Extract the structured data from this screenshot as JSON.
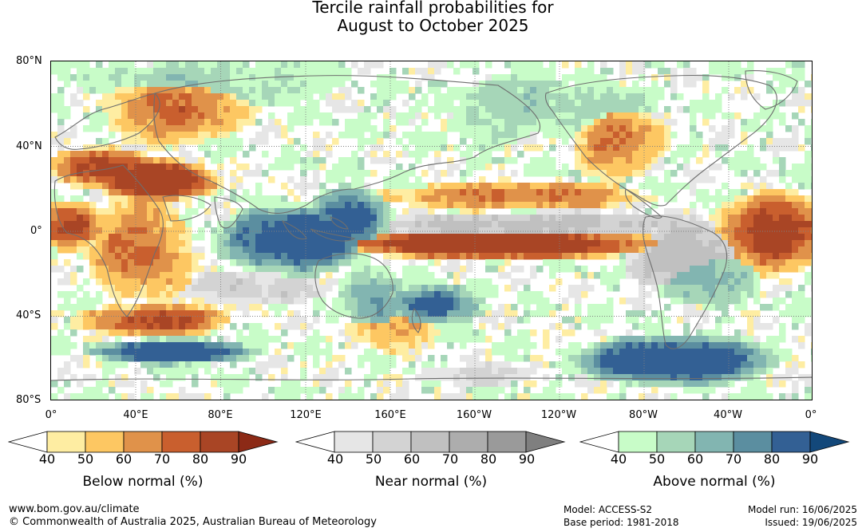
{
  "title": {
    "line1": "Tercile rainfall probabilities for",
    "line2": "August to October 2025"
  },
  "axes": {
    "lat_labels": [
      "80°N",
      "40°N",
      "0°",
      "40°S",
      "80°S"
    ],
    "lon_labels": [
      "0°",
      "40°E",
      "80°E",
      "120°E",
      "160°E",
      "160°W",
      "120°W",
      "80°W",
      "40°W",
      "0°"
    ]
  },
  "legends": [
    {
      "id": "below",
      "title": "Below normal (%)",
      "ticks": [
        "40",
        "50",
        "60",
        "70",
        "80",
        "90"
      ],
      "colors": [
        "#ffffff",
        "#feeda2",
        "#fdc762",
        "#e0924a",
        "#c95f2e",
        "#a94525",
        "#8c2a16"
      ]
    },
    {
      "id": "near",
      "title": "Near normal (%)",
      "ticks": [
        "40",
        "50",
        "60",
        "70",
        "80",
        "90"
      ],
      "colors": [
        "#ffffff",
        "#e6e6e6",
        "#d3d3d3",
        "#c0c0c0",
        "#adadad",
        "#9a9a9a",
        "#7f7f7f"
      ]
    },
    {
      "id": "above",
      "title": "Above normal (%)",
      "ticks": [
        "40",
        "50",
        "60",
        "70",
        "80",
        "90"
      ],
      "colors": [
        "#ffffff",
        "#c8fcc8",
        "#a6d6b8",
        "#82b5b1",
        "#5b8ea0",
        "#336094",
        "#13487a"
      ]
    }
  ],
  "footer": {
    "url": "www.bom.gov.au/climate",
    "copyright": "© Commonwealth of Australia 2025, Australian Bureau of Meteorology",
    "model": "Model: ACCESS-S2",
    "base_period": "Base period: 1981-2018",
    "model_run": "Model run: 16/06/2025",
    "issued": "Issued: 19/06/2025"
  }
}
